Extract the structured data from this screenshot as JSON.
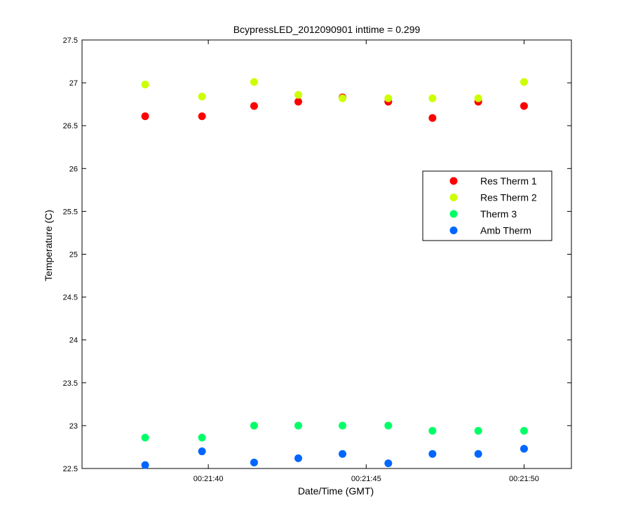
{
  "chart_data": {
    "type": "scatter",
    "title": "BcypressLED_2012090901 inttime = 0.299",
    "xlabel": "Date/Time (GMT)",
    "ylabel": "Temperature (C)",
    "xlim_seconds": [
      36.0,
      51.5
    ],
    "ylim": [
      22.5,
      27.5
    ],
    "yticks": [
      "22.5",
      "23",
      "23.5",
      "24",
      "24.5",
      "25",
      "25.5",
      "26",
      "26.5",
      "27",
      "27.5"
    ],
    "xticks": [
      {
        "value": 40,
        "label": "00:21:40"
      },
      {
        "value": 45,
        "label": "00:21:45"
      },
      {
        "value": 50,
        "label": "00:21:50"
      }
    ],
    "x": [
      38.0,
      39.8,
      41.45,
      42.85,
      44.25,
      45.7,
      47.1,
      48.55,
      50.0
    ],
    "series": [
      {
        "name": "Res Therm 1",
        "color": "#ff0000",
        "values": [
          26.61,
          26.61,
          26.73,
          26.78,
          26.83,
          26.78,
          26.59,
          26.78,
          26.73
        ]
      },
      {
        "name": "Res Therm 2",
        "color": "#ccff00",
        "values": [
          26.98,
          26.84,
          27.01,
          26.86,
          26.82,
          26.82,
          26.82,
          26.82,
          27.01
        ]
      },
      {
        "name": "Therm 3",
        "color": "#00ff66",
        "values": [
          22.86,
          22.86,
          23.0,
          23.0,
          23.0,
          23.0,
          22.94,
          22.94,
          22.94
        ]
      },
      {
        "name": "Amb Therm",
        "color": "#0066ff",
        "values": [
          22.54,
          22.7,
          22.57,
          22.62,
          22.67,
          22.56,
          22.67,
          22.67,
          22.73
        ]
      }
    ],
    "grid": false,
    "legend_position": "right"
  }
}
